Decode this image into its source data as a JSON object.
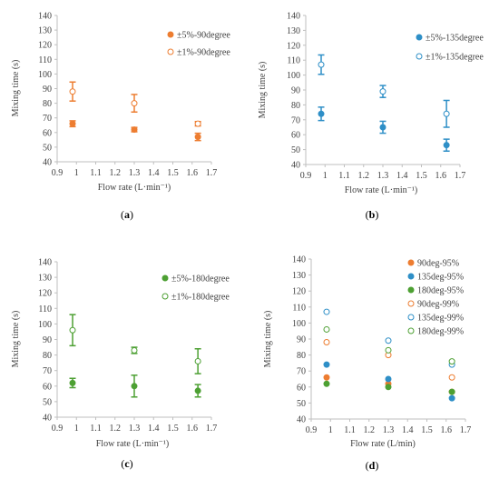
{
  "colors": {
    "orange": "#ED7D31",
    "blue": "#2E8FC7",
    "green": "#4DA033",
    "axis": "#bfbfbf",
    "text": "#404040"
  },
  "chart_data": [
    {
      "type": "scatter",
      "panel_label": "(a)",
      "xlabel": "Flow rate (L·min⁻¹)",
      "ylabel": "Mixing time (s)",
      "xlim": [
        0.9,
        1.7
      ],
      "ylim": [
        40,
        140
      ],
      "xticks": [
        "0.9",
        "1",
        "1.1",
        "1.2",
        "1.3",
        "1.4",
        "1.5",
        "1.6",
        "1.7"
      ],
      "yticks": [
        "40",
        "50",
        "60",
        "70",
        "80",
        "90",
        "100",
        "110",
        "120",
        "130",
        "140"
      ],
      "legend_position": "top-right",
      "series": [
        {
          "name": "±5%-90degree",
          "color": "#ED7D31",
          "marker": "filled",
          "x": [
            0.98,
            1.3,
            1.63
          ],
          "y": [
            66,
            62,
            57
          ],
          "err": [
            2,
            1.5,
            2.5
          ]
        },
        {
          "name": "±1%-90degree",
          "color": "#ED7D31",
          "marker": "open",
          "x": [
            0.98,
            1.3,
            1.63
          ],
          "y": [
            88,
            80,
            66
          ],
          "err": [
            6.5,
            6,
            1.5
          ]
        }
      ]
    },
    {
      "type": "scatter",
      "panel_label": "(b)",
      "xlabel": "Flow rate (L·min⁻¹)",
      "ylabel": "Mixing time (s)",
      "xlim": [
        0.9,
        1.7
      ],
      "ylim": [
        40,
        140
      ],
      "xticks": [
        "0.9",
        "1",
        "1.1",
        "1.2",
        "1.3",
        "1.4",
        "1.5",
        "1.6",
        "1.7"
      ],
      "yticks": [
        "40",
        "50",
        "60",
        "70",
        "80",
        "90",
        "100",
        "110",
        "120",
        "130",
        "140"
      ],
      "legend_position": "top-right",
      "series": [
        {
          "name": "±5%-135degree",
          "color": "#2E8FC7",
          "marker": "filled",
          "x": [
            0.98,
            1.3,
            1.63
          ],
          "y": [
            74,
            65,
            53
          ],
          "err": [
            4.5,
            4,
            4
          ]
        },
        {
          "name": "±1%-135degree",
          "color": "#2E8FC7",
          "marker": "open",
          "x": [
            0.98,
            1.3,
            1.63
          ],
          "y": [
            107,
            89,
            74
          ],
          "err": [
            6.5,
            4,
            9
          ]
        }
      ]
    },
    {
      "type": "scatter",
      "panel_label": "(c)",
      "xlabel": "Flow rate (L·min⁻¹)",
      "ylabel": "Mixing time (s)",
      "xlim": [
        0.9,
        1.7
      ],
      "ylim": [
        40,
        140
      ],
      "xticks": [
        "0.9",
        "1",
        "1.1",
        "1.2",
        "1.3",
        "1.4",
        "1.5",
        "1.6",
        "1.7"
      ],
      "yticks": [
        "40",
        "50",
        "60",
        "70",
        "80",
        "90",
        "100",
        "110",
        "120",
        "130",
        "140"
      ],
      "legend_position": "top-right",
      "series": [
        {
          "name": "±5%-180degree",
          "color": "#4DA033",
          "marker": "filled",
          "x": [
            0.98,
            1.3,
            1.63
          ],
          "y": [
            62,
            60,
            57
          ],
          "err": [
            3,
            7,
            4
          ]
        },
        {
          "name": "±1%-180degree",
          "color": "#4DA033",
          "marker": "open",
          "x": [
            0.98,
            1.3,
            1.63
          ],
          "y": [
            96,
            83,
            76
          ],
          "err": [
            10,
            2,
            8
          ]
        }
      ]
    },
    {
      "type": "scatter",
      "panel_label": "(d)",
      "xlabel": "Flow rate (L/min)",
      "ylabel": "Mixing time (s)",
      "xlim": [
        0.9,
        1.7
      ],
      "ylim": [
        40,
        140
      ],
      "xticks": [
        "0.9",
        "1",
        "1.1",
        "1.2",
        "1.3",
        "1.4",
        "1.5",
        "1.6",
        "1.7"
      ],
      "yticks": [
        "40",
        "50",
        "60",
        "70",
        "80",
        "90",
        "100",
        "110",
        "120",
        "130",
        "140"
      ],
      "legend_position": "top-right",
      "series": [
        {
          "name": "90deg-95%",
          "color": "#ED7D31",
          "marker": "filled",
          "x": [
            0.98,
            1.3,
            1.63
          ],
          "y": [
            66,
            62,
            57
          ],
          "err": [
            0,
            0,
            0
          ]
        },
        {
          "name": "135deg-95%",
          "color": "#2E8FC7",
          "marker": "filled",
          "x": [
            0.98,
            1.3,
            1.63
          ],
          "y": [
            74,
            65,
            53
          ],
          "err": [
            0,
            0,
            0
          ]
        },
        {
          "name": "180deg-95%",
          "color": "#4DA033",
          "marker": "filled",
          "x": [
            0.98,
            1.3,
            1.63
          ],
          "y": [
            62,
            60,
            57
          ],
          "err": [
            0,
            0,
            0
          ]
        },
        {
          "name": "90deg-99%",
          "color": "#ED7D31",
          "marker": "open",
          "x": [
            0.98,
            1.3,
            1.63
          ],
          "y": [
            88,
            80,
            66
          ],
          "err": [
            0,
            0,
            0
          ]
        },
        {
          "name": "135deg-99%",
          "color": "#2E8FC7",
          "marker": "open",
          "x": [
            0.98,
            1.3,
            1.63
          ],
          "y": [
            107,
            89,
            74
          ],
          "err": [
            0,
            0,
            0
          ]
        },
        {
          "name": "180deg-99%",
          "color": "#4DA033",
          "marker": "open",
          "x": [
            0.98,
            1.3,
            1.63
          ],
          "y": [
            96,
            83,
            76
          ],
          "err": [
            0,
            0,
            0
          ]
        }
      ]
    }
  ]
}
